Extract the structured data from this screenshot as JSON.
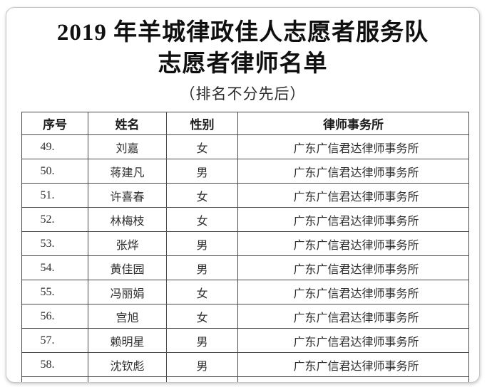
{
  "doc": {
    "title_line1": "2019 年羊城律政佳人志愿者服务队",
    "title_line2": "志愿者律师名单",
    "subtitle": "（排名不分先后）"
  },
  "table": {
    "columns": [
      "序号",
      "姓名",
      "性别",
      "律师事务所"
    ],
    "rows": [
      {
        "no": "49.",
        "name": "刘嘉",
        "gender": "女",
        "firm": "广东广信君达律师事务所"
      },
      {
        "no": "50.",
        "name": "蒋建凡",
        "gender": "男",
        "firm": "广东广信君达律师事务所"
      },
      {
        "no": "51.",
        "name": "许喜春",
        "gender": "女",
        "firm": "广东广信君达律师事务所"
      },
      {
        "no": "52.",
        "name": "林梅枝",
        "gender": "女",
        "firm": "广东广信君达律师事务所"
      },
      {
        "no": "53.",
        "name": "张烨",
        "gender": "男",
        "firm": "广东广信君达律师事务所"
      },
      {
        "no": "54.",
        "name": "黄佳园",
        "gender": "男",
        "firm": "广东广信君达律师事务所"
      },
      {
        "no": "55.",
        "name": "冯丽娟",
        "gender": "女",
        "firm": "广东广信君达律师事务所"
      },
      {
        "no": "56.",
        "name": "宫旭",
        "gender": "女",
        "firm": "广东广信君达律师事务所"
      },
      {
        "no": "57.",
        "name": "赖明星",
        "gender": "男",
        "firm": "广东广信君达律师事务所"
      },
      {
        "no": "58.",
        "name": "沈钦彪",
        "gender": "男",
        "firm": "广东广信君达律师事务所"
      }
    ]
  },
  "colors": {
    "table_border": "#4a4a4a",
    "card_border": "#c6c6c6",
    "body_text": "#2f2f2f",
    "title_text": "#101010"
  }
}
